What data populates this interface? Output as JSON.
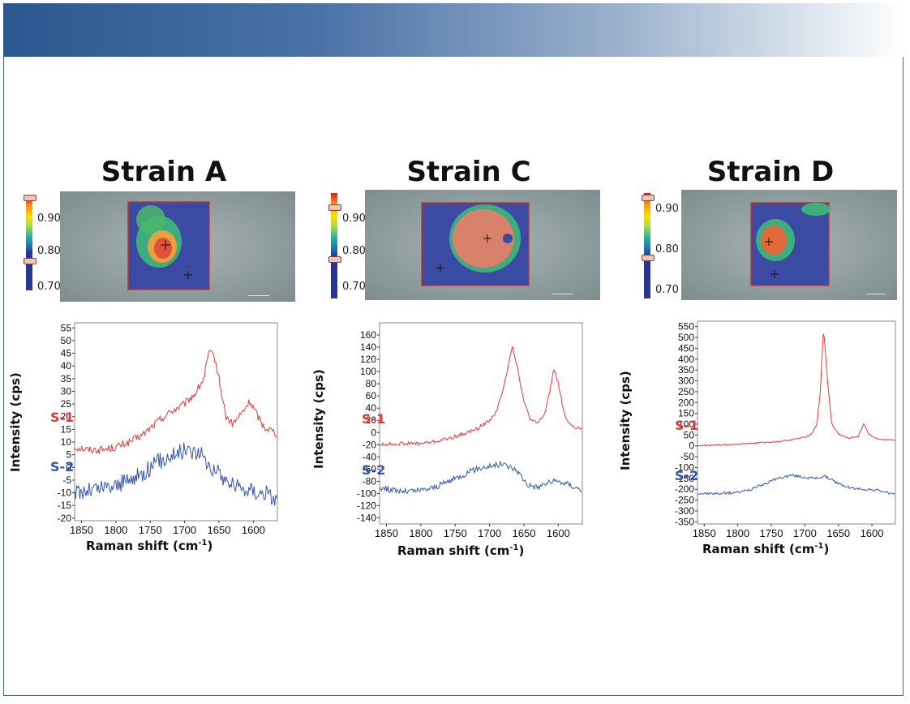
{
  "colors": {
    "s1": "#e03a3a",
    "s2": "#3557a7",
    "roi_border": "#c0392b"
  },
  "colorbar_ticks": [
    "0.90",
    "0.80",
    "0.70"
  ],
  "chart_data": [
    {
      "type": "line",
      "title": "Strain A",
      "xlabel": "Raman shift (cm-1)",
      "ylabel": "Intensity (cps)",
      "xlim": [
        1860,
        1565
      ],
      "ylim": [
        -21,
        57
      ],
      "xticks": [
        1850,
        1800,
        1750,
        1700,
        1650,
        1600
      ],
      "yticks": [
        55,
        50,
        45,
        40,
        35,
        30,
        25,
        20,
        15,
        10,
        5,
        0,
        -5,
        -10,
        -15,
        -20
      ],
      "series": [
        {
          "name": "S-1",
          "noise": 1.5,
          "points": [
            [
              1860,
              8
            ],
            [
              1840,
              7
            ],
            [
              1820,
              7
            ],
            [
              1800,
              8
            ],
            [
              1780,
              10
            ],
            [
              1760,
              13
            ],
            [
              1740,
              18
            ],
            [
              1720,
              22
            ],
            [
              1700,
              25
            ],
            [
              1685,
              29
            ],
            [
              1672,
              35
            ],
            [
              1665,
              45
            ],
            [
              1657,
              44
            ],
            [
              1650,
              35
            ],
            [
              1640,
              20
            ],
            [
              1630,
              17
            ],
            [
              1615,
              22
            ],
            [
              1605,
              26
            ],
            [
              1595,
              21
            ],
            [
              1585,
              16
            ],
            [
              1575,
              15
            ],
            [
              1565,
              13
            ]
          ]
        },
        {
          "name": "S-2",
          "noise": 3.5,
          "points": [
            [
              1860,
              -10
            ],
            [
              1840,
              -9
            ],
            [
              1820,
              -8
            ],
            [
              1800,
              -7
            ],
            [
              1780,
              -5
            ],
            [
              1760,
              -2
            ],
            [
              1740,
              2
            ],
            [
              1720,
              5
            ],
            [
              1700,
              7
            ],
            [
              1680,
              6
            ],
            [
              1660,
              0
            ],
            [
              1640,
              -5
            ],
            [
              1620,
              -8
            ],
            [
              1600,
              -9
            ],
            [
              1585,
              -10
            ],
            [
              1575,
              -11
            ],
            [
              1565,
              -13
            ]
          ]
        }
      ]
    },
    {
      "type": "line",
      "title": "Strain C",
      "xlabel": "Raman shift (cm-1)",
      "ylabel": "Intensity (cps)",
      "xlim": [
        1860,
        1565
      ],
      "ylim": [
        -150,
        180
      ],
      "xticks": [
        1850,
        1800,
        1750,
        1700,
        1650,
        1600
      ],
      "yticks": [
        160,
        140,
        120,
        100,
        80,
        60,
        40,
        20,
        0,
        -20,
        -40,
        -60,
        -80,
        -100,
        -120,
        -140
      ],
      "series": [
        {
          "name": "S-1",
          "noise": 3,
          "points": [
            [
              1860,
              -20
            ],
            [
              1830,
              -18
            ],
            [
              1800,
              -18
            ],
            [
              1780,
              -15
            ],
            [
              1760,
              -10
            ],
            [
              1740,
              -3
            ],
            [
              1720,
              5
            ],
            [
              1700,
              20
            ],
            [
              1690,
              35
            ],
            [
              1680,
              70
            ],
            [
              1673,
              110
            ],
            [
              1667,
              143
            ],
            [
              1660,
              110
            ],
            [
              1650,
              50
            ],
            [
              1640,
              20
            ],
            [
              1630,
              15
            ],
            [
              1620,
              30
            ],
            [
              1612,
              70
            ],
            [
              1606,
              107
            ],
            [
              1600,
              80
            ],
            [
              1590,
              25
            ],
            [
              1580,
              10
            ],
            [
              1565,
              5
            ]
          ]
        },
        {
          "name": "S-2",
          "noise": 5,
          "points": [
            [
              1860,
              -90
            ],
            [
              1840,
              -95
            ],
            [
              1820,
              -97
            ],
            [
              1800,
              -95
            ],
            [
              1780,
              -90
            ],
            [
              1760,
              -80
            ],
            [
              1740,
              -70
            ],
            [
              1720,
              -60
            ],
            [
              1700,
              -55
            ],
            [
              1680,
              -52
            ],
            [
              1660,
              -62
            ],
            [
              1645,
              -85
            ],
            [
              1630,
              -90
            ],
            [
              1615,
              -82
            ],
            [
              1600,
              -80
            ],
            [
              1585,
              -85
            ],
            [
              1565,
              -95
            ]
          ]
        }
      ]
    },
    {
      "type": "line",
      "title": "Strain D",
      "xlabel": "Raman shift (cm-1)",
      "ylabel": "Intensity (cps)",
      "xlim": [
        1860,
        1565
      ],
      "ylim": [
        -360,
        575
      ],
      "xticks": [
        1850,
        1800,
        1750,
        1700,
        1650,
        1600
      ],
      "yticks": [
        550,
        500,
        450,
        400,
        350,
        300,
        250,
        200,
        150,
        100,
        50,
        0,
        -50,
        -100,
        -150,
        -200,
        -250,
        -300,
        -350
      ],
      "series": [
        {
          "name": "S-1",
          "noise": 3,
          "points": [
            [
              1860,
              0
            ],
            [
              1820,
              5
            ],
            [
              1780,
              12
            ],
            [
              1740,
              20
            ],
            [
              1720,
              28
            ],
            [
              1700,
              40
            ],
            [
              1690,
              55
            ],
            [
              1682,
              100
            ],
            [
              1677,
              250
            ],
            [
              1672,
              545
            ],
            [
              1667,
              330
            ],
            [
              1660,
              100
            ],
            [
              1650,
              55
            ],
            [
              1635,
              35
            ],
            [
              1620,
              45
            ],
            [
              1612,
              105
            ],
            [
              1605,
              55
            ],
            [
              1590,
              30
            ],
            [
              1565,
              25
            ]
          ]
        },
        {
          "name": "S-2",
          "noise": 6,
          "points": [
            [
              1860,
              -220
            ],
            [
              1830,
              -220
            ],
            [
              1800,
              -215
            ],
            [
              1780,
              -200
            ],
            [
              1760,
              -175
            ],
            [
              1740,
              -150
            ],
            [
              1720,
              -135
            ],
            [
              1700,
              -145
            ],
            [
              1685,
              -150
            ],
            [
              1670,
              -140
            ],
            [
              1650,
              -175
            ],
            [
              1630,
              -195
            ],
            [
              1610,
              -200
            ],
            [
              1590,
              -205
            ],
            [
              1565,
              -225
            ]
          ]
        }
      ]
    }
  ]
}
